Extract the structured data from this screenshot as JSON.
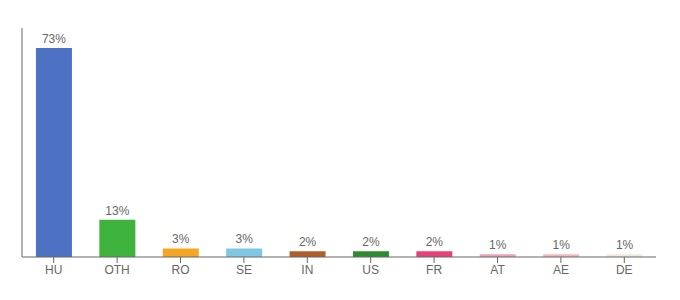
{
  "chart_data": {
    "type": "bar",
    "categories": [
      "HU",
      "OTH",
      "RO",
      "SE",
      "IN",
      "US",
      "FR",
      "AT",
      "AE",
      "DE"
    ],
    "values": [
      73,
      13,
      3,
      3,
      2,
      2,
      2,
      1,
      1,
      1
    ],
    "value_labels": [
      "73%",
      "13%",
      "3%",
      "3%",
      "2%",
      "2%",
      "2%",
      "1%",
      "1%",
      "1%"
    ],
    "colors": [
      "#4d72c4",
      "#3db33d",
      "#f5a623",
      "#7ec8e3",
      "#b05f28",
      "#2e8b2e",
      "#e8417a",
      "#f0a0b8",
      "#f5b8b8",
      "#f0ead8"
    ],
    "ylim": [
      0,
      80
    ],
    "grid": false,
    "data_labels": true,
    "tick_labels": "x"
  }
}
